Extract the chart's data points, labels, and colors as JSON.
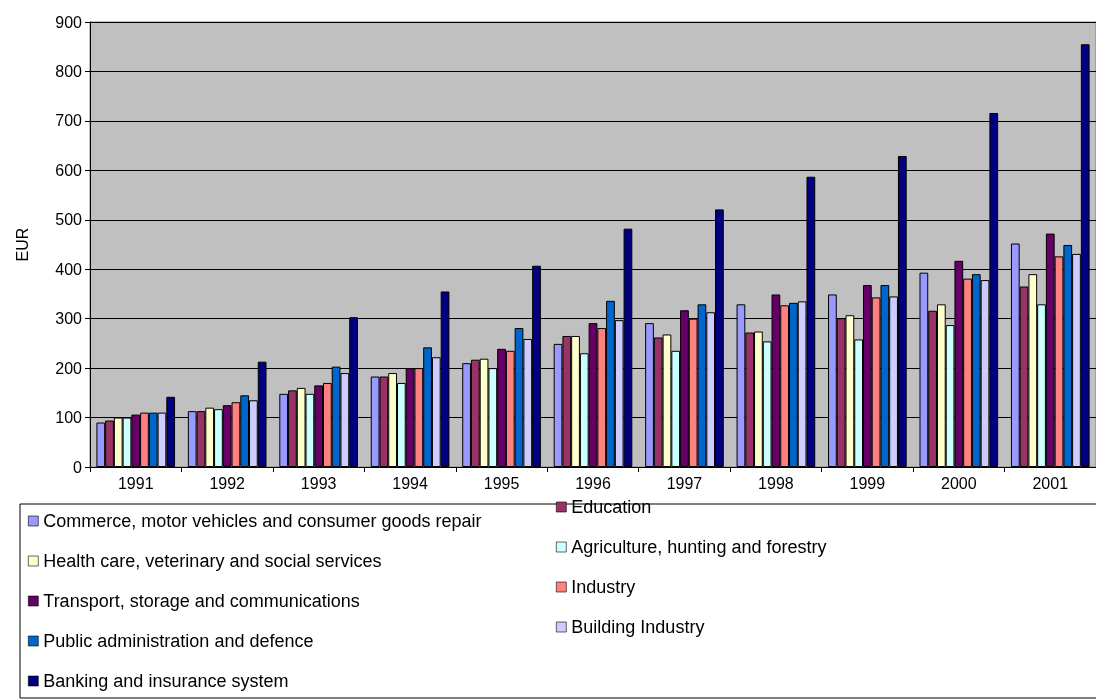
{
  "chart_data": {
    "type": "bar",
    "ylabel": "EUR",
    "categories": [
      "1991",
      "1992",
      "1993",
      "1994",
      "1995",
      "1996",
      "1997",
      "1998",
      "1999",
      "2000",
      "2001"
    ],
    "series": [
      {
        "name": "Commerce, motor vehicles and consumer goods repair",
        "color": "#9999ff",
        "values": [
          90,
          113,
          148,
          183,
          210,
          249,
          291,
          329,
          349,
          393,
          452
        ]
      },
      {
        "name": "Education",
        "color": "#993366",
        "values": [
          94,
          113,
          155,
          183,
          217,
          265,
          262,
          272,
          301,
          316,
          365
        ]
      },
      {
        "name": "Health care, veterinary and social services",
        "color": "#ffffcc",
        "values": [
          100,
          120,
          160,
          190,
          219,
          265,
          268,
          274,
          307,
          329,
          390
        ]
      },
      {
        "name": "Agriculture, hunting and forestry",
        "color": "#ccffff",
        "values": [
          100,
          117,
          148,
          170,
          200,
          230,
          235,
          254,
          258,
          287,
          329
        ]
      },
      {
        "name": "Transport, storage and communications",
        "color": "#660066",
        "values": [
          106,
          125,
          165,
          200,
          239,
          291,
          317,
          349,
          368,
          417,
          472
        ]
      },
      {
        "name": "Industry",
        "color": "#ff8080",
        "values": [
          110,
          131,
          170,
          200,
          235,
          281,
          300,
          327,
          343,
          381,
          426
        ]
      },
      {
        "name": "Public administration and defence",
        "color": "#0066cc",
        "values": [
          110,
          145,
          203,
          242,
          281,
          336,
          329,
          332,
          368,
          390,
          449
        ]
      },
      {
        "name": "Building Industry",
        "color": "#ccccff",
        "values": [
          110,
          135,
          190,
          222,
          259,
          297,
          313,
          335,
          345,
          378,
          431
        ]
      },
      {
        "name": "Banking and insurance system",
        "color": "#000080",
        "values": [
          142,
          213,
          303,
          355,
          407,
          482,
          521,
          587,
          629,
          716,
          855
        ]
      }
    ],
    "ylim": [
      0,
      900
    ],
    "yticks": [
      0,
      100,
      200,
      300,
      400,
      500,
      600,
      700,
      800,
      900
    ],
    "grid": "y",
    "legend": "bottom"
  }
}
